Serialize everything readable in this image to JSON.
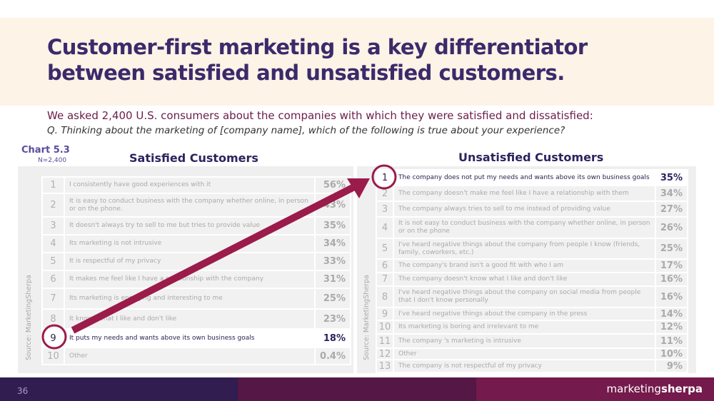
{
  "title": "Customer-first marketing is a key differentiator between satisfied and unsatisfied customers.",
  "subtitle": "We asked 2,400 U.S. consumers about the companies with which they were satisfied and dissatisfied:",
  "question": "Q. Thinking about the marketing of [company name], which of the following is true about your experience?",
  "chart_label": "Chart 5.3",
  "sample": "N=2,400",
  "source": "Source: MarketingSherpa",
  "satisfied": {
    "heading": "Satisfied Customers",
    "highlight_rank": "9",
    "rows": [
      {
        "n": "1",
        "text": "I consistently have good experiences with it",
        "pct": "56%"
      },
      {
        "n": "2",
        "text": "It is easy to conduct business with the company whether online, in person or on the phone.",
        "pct": "43%"
      },
      {
        "n": "3",
        "text": "It doesn't always try to sell to me but tries to provide value",
        "pct": "35%"
      },
      {
        "n": "4",
        "text": "Its marketing is not intrusive",
        "pct": "34%"
      },
      {
        "n": "5",
        "text": "It is respectful of my privacy",
        "pct": "33%"
      },
      {
        "n": "6",
        "text": "It makes me feel like I have a relationship with the company",
        "pct": "31%"
      },
      {
        "n": "7",
        "text": "Its marketing is engaging and interesting to me",
        "pct": "25%"
      },
      {
        "n": "8",
        "text": "It knows what I like and don't like",
        "pct": "23%"
      },
      {
        "n": "9",
        "text": "It puts my needs and wants above its own business goals",
        "pct": "18%"
      },
      {
        "n": "10",
        "text": "Other",
        "pct": "0.4%"
      }
    ]
  },
  "unsatisfied": {
    "heading": "Unsatisfied Customers",
    "highlight_rank": "1",
    "rows": [
      {
        "n": "1",
        "text": "The company does not put my needs and wants above its own business goals",
        "pct": "35%"
      },
      {
        "n": "2",
        "text": "The company doesn't make me feel like I have a relationship with them",
        "pct": "34%"
      },
      {
        "n": "3",
        "text": "The company always tries to sell to me instead of providing value",
        "pct": "27%"
      },
      {
        "n": "4",
        "text": "It is not easy to conduct business with the company whether online, in person or on the phone",
        "pct": "26%"
      },
      {
        "n": "5",
        "text": "I've heard negative things about the company from people I know (friends, family, coworkers, etc.)",
        "pct": "25%"
      },
      {
        "n": "6",
        "text": "The company's brand isn't a good fit with who I am",
        "pct": "17%"
      },
      {
        "n": "7",
        "text": "The company doesn't know what I like and don't like",
        "pct": "16%"
      },
      {
        "n": "8",
        "text": "I've heard negative things about the company on social media from people that I don't know personally",
        "pct": "16%"
      },
      {
        "n": "9",
        "text": "I've heard negative things about the company in the press",
        "pct": "14%"
      },
      {
        "n": "10",
        "text": "Its marketing is boring and irrelevant to me",
        "pct": "12%"
      },
      {
        "n": "11",
        "text": "The company 's marketing is intrusive",
        "pct": "11%"
      },
      {
        "n": "12",
        "text": "Other",
        "pct": "10%"
      },
      {
        "n": "13",
        "text": "The company is not respectful of my privacy",
        "pct": "9%"
      }
    ]
  },
  "footer": {
    "page": "36",
    "logo": "marketingsherpa",
    "logo_light": "marketing",
    "logo_bold": "sherpa"
  },
  "colors": {
    "title": "#3b2a6b",
    "accent": "#9b1b4a",
    "band": "#fdf3e6",
    "footer": [
      "#311d4f",
      "#541746",
      "#741a4c"
    ]
  }
}
